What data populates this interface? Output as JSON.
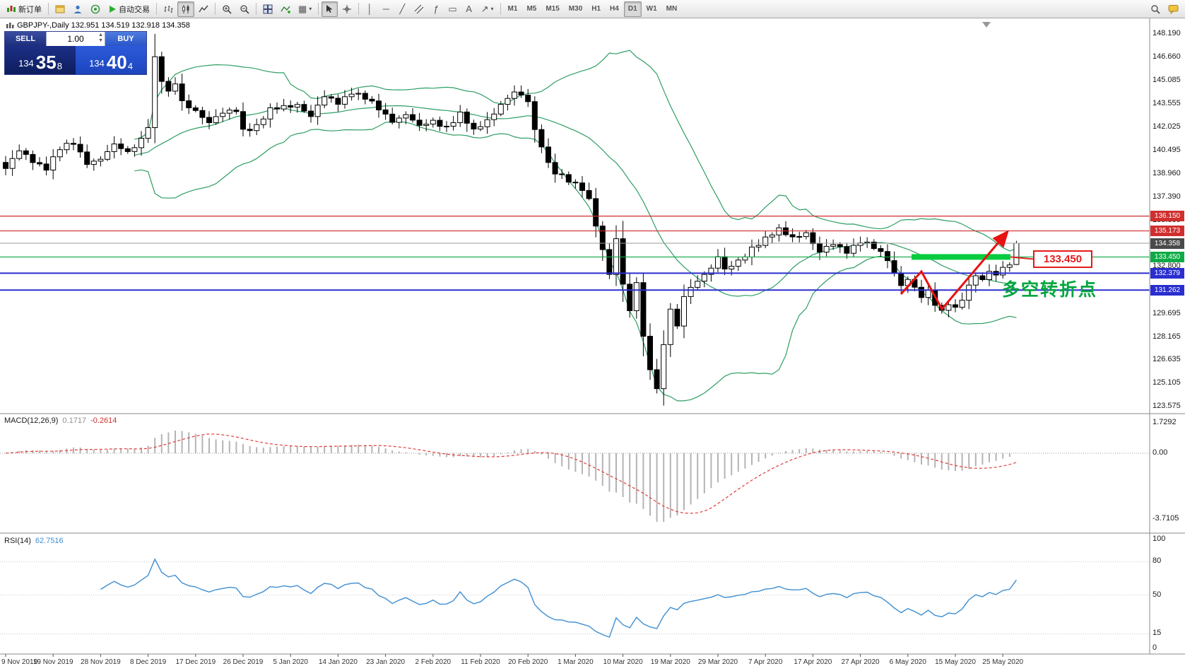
{
  "toolbar": {
    "new_order_label": "新订单",
    "auto_trading_label": "自动交易",
    "timeframes": [
      "M1",
      "M5",
      "M15",
      "M30",
      "H1",
      "H4",
      "D1",
      "W1",
      "MN"
    ],
    "active_timeframe": "D1"
  },
  "trade_panel": {
    "sell_label": "SELL",
    "buy_label": "BUY",
    "volume": "1.00",
    "bid": {
      "prefix": "134",
      "big": "35",
      "sup": "8"
    },
    "ask": {
      "prefix": "134",
      "big": "40",
      "sup": "4"
    }
  },
  "header": {
    "symbol_line": "GBPJPY-,Daily  132.951 134.519 132.918 134.358"
  },
  "panels": {
    "macd": {
      "name": "MACD(12,26,9)",
      "main_value": "0.1717",
      "signal_value": "-0.2614",
      "axis": [
        "1.7292",
        "0.00",
        "-3.7105"
      ]
    },
    "rsi": {
      "name": "RSI(14)",
      "value": "62.7516",
      "axis_labels": [
        "100",
        "80",
        "50",
        "15",
        "0"
      ],
      "axis_values": [
        100,
        80,
        50,
        15,
        0
      ]
    }
  },
  "annotations": {
    "turning_point": "多空转折点",
    "level_callout": "133.450"
  },
  "price_axis": {
    "regular": [
      148.19,
      146.66,
      145.085,
      143.555,
      142.025,
      140.495,
      138.96,
      137.39,
      135.86,
      132.8,
      129.695,
      128.165,
      126.635,
      125.105,
      123.575
    ],
    "boxed": [
      {
        "text": "136.150",
        "price": 136.15,
        "bg": "#d02f2f"
      },
      {
        "text": "135.173",
        "price": 135.173,
        "bg": "#d02f2f"
      },
      {
        "text": "134.358",
        "price": 134.358,
        "bg": "#4a4a4a"
      },
      {
        "text": "133.450",
        "price": 133.45,
        "bg": "#0faa46"
      },
      {
        "text": "132.379",
        "price": 132.379,
        "bg": "#2a2ecf"
      },
      {
        "text": "131.262",
        "price": 131.262,
        "bg": "#2a2ecf"
      }
    ]
  },
  "dates": [
    "9 Nov 2019",
    "19 Nov 2019",
    "28 Nov 2019",
    "8 Dec 2019",
    "17 Dec 2019",
    "26 Dec 2019",
    "5 Jan 2020",
    "14 Jan 2020",
    "23 Jan 2020",
    "2 Feb 2020",
    "11 Feb 2020",
    "20 Feb 2020",
    "1 Mar 2020",
    "10 Mar 2020",
    "19 Mar 2020",
    "29 Mar 2020",
    "7 Apr 2020",
    "17 Apr 2020",
    "27 Apr 2020",
    "6 May 2020",
    "15 May 2020",
    "25 May 2020"
  ],
  "chart_data": {
    "type": "candlestick",
    "symbol": "GBPJPY",
    "period": "Daily",
    "current_ohlc": {
      "open": 132.951,
      "high": 134.519,
      "low": 132.918,
      "close": 134.358
    },
    "bid": 134.358,
    "ask": 134.404,
    "price_axis_range": [
      123.575,
      148.19
    ],
    "horizontal_levels": {
      "resistance_red": [
        136.15,
        135.173
      ],
      "support_green": 133.45,
      "support_blue": [
        132.379,
        131.262
      ],
      "current_price": 134.358
    },
    "indicators": {
      "bollinger": {
        "period": 20,
        "deviation": 2
      },
      "macd": {
        "fast": 12,
        "slow": 26,
        "signal": 9,
        "main": 0.1717,
        "signal_value": -0.2614,
        "scale_max": 1.7292,
        "scale_min": -3.7105
      },
      "rsi": {
        "period": 14,
        "value": 62.7516,
        "levels": [
          80,
          50,
          15
        ]
      }
    },
    "num_candles": 150,
    "close_anchors": [
      [
        0,
        139.3
      ],
      [
        2,
        140.4
      ],
      [
        4,
        139.8
      ],
      [
        6,
        139.4
      ],
      [
        8,
        140.6
      ],
      [
        10,
        140.9
      ],
      [
        12,
        139.7
      ],
      [
        14,
        140.0
      ],
      [
        16,
        140.8
      ],
      [
        18,
        140.3
      ],
      [
        20,
        141.3
      ],
      [
        21,
        142.2
      ],
      [
        22,
        146.6
      ],
      [
        23,
        145.1
      ],
      [
        24,
        144.2
      ],
      [
        25,
        144.9
      ],
      [
        26,
        143.7
      ],
      [
        28,
        143.2
      ],
      [
        30,
        142.3
      ],
      [
        32,
        142.9
      ],
      [
        34,
        143.2
      ],
      [
        35,
        141.9
      ],
      [
        37,
        142.1
      ],
      [
        39,
        143.1
      ],
      [
        41,
        143.4
      ],
      [
        43,
        143.6
      ],
      [
        45,
        142.7
      ],
      [
        47,
        144.0
      ],
      [
        49,
        143.7
      ],
      [
        51,
        144.4
      ],
      [
        53,
        143.9
      ],
      [
        55,
        143.2
      ],
      [
        57,
        142.5
      ],
      [
        59,
        142.9
      ],
      [
        61,
        142.0
      ],
      [
        63,
        142.4
      ],
      [
        65,
        142.1
      ],
      [
        67,
        142.9
      ],
      [
        69,
        141.7
      ],
      [
        71,
        142.5
      ],
      [
        73,
        143.6
      ],
      [
        75,
        144.3
      ],
      [
        77,
        143.7
      ],
      [
        78,
        141.8
      ],
      [
        79,
        140.9
      ],
      [
        80,
        139.7
      ],
      [
        81,
        139.1
      ],
      [
        83,
        138.4
      ],
      [
        85,
        137.9
      ],
      [
        86,
        137.3
      ],
      [
        88,
        134.0
      ],
      [
        89,
        132.3
      ],
      [
        90,
        134.6
      ],
      [
        91,
        131.5
      ],
      [
        92,
        129.9
      ],
      [
        93,
        131.7
      ],
      [
        94,
        128.4
      ],
      [
        95,
        126.0
      ],
      [
        96,
        124.9
      ],
      [
        97,
        127.5
      ],
      [
        98,
        130.0
      ],
      [
        99,
        128.7
      ],
      [
        100,
        130.9
      ],
      [
        102,
        132.0
      ],
      [
        104,
        132.7
      ],
      [
        105,
        133.4
      ],
      [
        106,
        132.5
      ],
      [
        108,
        133.2
      ],
      [
        110,
        134.1
      ],
      [
        112,
        134.6
      ],
      [
        114,
        135.2
      ],
      [
        116,
        134.8
      ],
      [
        118,
        135.1
      ],
      [
        119,
        134.3
      ],
      [
        120,
        133.7
      ],
      [
        122,
        134.3
      ],
      [
        124,
        133.9
      ],
      [
        126,
        134.5
      ],
      [
        128,
        134.0
      ],
      [
        130,
        133.3
      ],
      [
        131,
        132.4
      ],
      [
        132,
        131.7
      ],
      [
        133,
        132.0
      ],
      [
        134,
        131.4
      ],
      [
        135,
        130.7
      ],
      [
        136,
        131.1
      ],
      [
        137,
        130.3
      ],
      [
        138,
        129.9
      ],
      [
        139,
        130.5
      ],
      [
        140,
        130.1
      ],
      [
        141,
        130.7
      ],
      [
        142,
        131.4
      ],
      [
        143,
        132.2
      ],
      [
        144,
        131.8
      ],
      [
        145,
        132.6
      ],
      [
        146,
        132.3
      ],
      [
        147,
        132.9
      ],
      [
        148,
        132.95
      ],
      [
        149,
        134.358
      ]
    ],
    "high_overrides": {
      "22": 148.19
    },
    "low_overrides": {
      "96": 124.43
    }
  }
}
